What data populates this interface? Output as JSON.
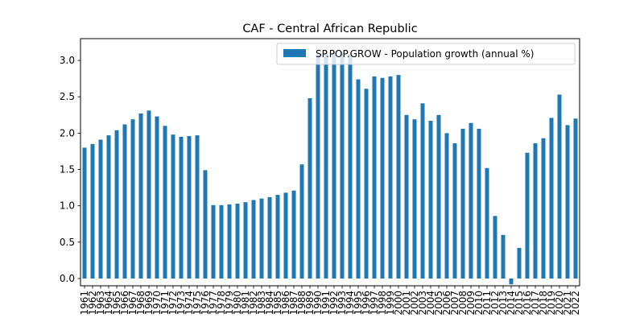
{
  "chart_data": {
    "type": "bar",
    "title": "CAF - Central African Republic",
    "xlabel": "",
    "ylabel": "",
    "ylim": [
      -0.1,
      3.3
    ],
    "yticks": [
      0.0,
      0.5,
      1.0,
      1.5,
      2.0,
      2.5,
      3.0
    ],
    "ytick_labels": [
      "0.0",
      "0.5",
      "1.0",
      "1.5",
      "2.0",
      "2.5",
      "3.0"
    ],
    "legend_placement": "top-right",
    "grid": false,
    "bar_color": "#1f77b4",
    "categories": [
      "1961",
      "1962",
      "1963",
      "1964",
      "1965",
      "1966",
      "1967",
      "1968",
      "1969",
      "1970",
      "1971",
      "1972",
      "1973",
      "1974",
      "1975",
      "1976",
      "1977",
      "1978",
      "1979",
      "1980",
      "1981",
      "1982",
      "1983",
      "1984",
      "1985",
      "1986",
      "1987",
      "1988",
      "1989",
      "1990",
      "1991",
      "1992",
      "1993",
      "1994",
      "1995",
      "1996",
      "1997",
      "1998",
      "1999",
      "2000",
      "2001",
      "2002",
      "2003",
      "2004",
      "2005",
      "2006",
      "2007",
      "2008",
      "2009",
      "2010",
      "2011",
      "2012",
      "2013",
      "2014",
      "2015",
      "2016",
      "2017",
      "2018",
      "2019",
      "2020",
      "2021",
      "2022"
    ],
    "series": [
      {
        "name": "SP.POP.GROW - Population growth (annual %)",
        "values": [
          1.8,
          1.85,
          1.91,
          1.97,
          2.04,
          2.12,
          2.19,
          2.27,
          2.31,
          2.23,
          2.1,
          1.98,
          1.95,
          1.96,
          1.97,
          1.49,
          1.01,
          1.01,
          1.02,
          1.03,
          1.05,
          1.08,
          1.1,
          1.12,
          1.15,
          1.18,
          1.21,
          1.57,
          2.48,
          3.08,
          3.1,
          3.12,
          3.11,
          3.08,
          2.74,
          2.61,
          2.78,
          2.76,
          2.78,
          2.8,
          2.25,
          2.19,
          2.41,
          2.17,
          2.25,
          2.0,
          1.86,
          2.06,
          2.14,
          2.06,
          1.52,
          0.86,
          0.6,
          -0.08,
          0.42,
          1.73,
          1.86,
          1.93,
          2.21,
          2.53,
          2.11,
          2.2
        ]
      }
    ]
  }
}
